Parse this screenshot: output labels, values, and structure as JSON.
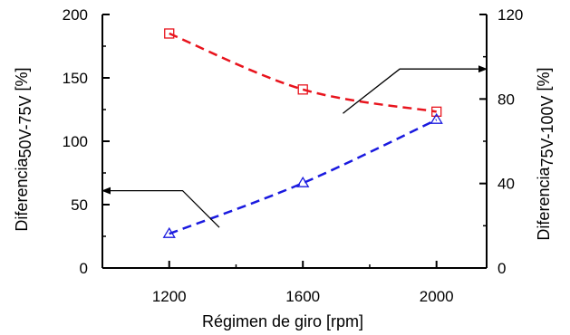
{
  "chart_data": {
    "type": "line",
    "xlabel": "Régimen de giro [rpm]",
    "ylabel_left": {
      "main": "Diferencia",
      "sub": "50V-75V",
      "unit": " [%]"
    },
    "ylabel_right": {
      "main": "Diferencia",
      "sub": "75V-100V",
      "unit": " [%]"
    },
    "x_ticks": [
      1200,
      1600,
      2000
    ],
    "x_range": [
      1000,
      2150
    ],
    "y_left_ticks": [
      0,
      50,
      100,
      150,
      200
    ],
    "y_left_range": [
      0,
      200
    ],
    "y_right_ticks": [
      0,
      40,
      80,
      120
    ],
    "y_right_range": [
      0,
      120
    ],
    "grid": false,
    "series": [
      {
        "axis": "right",
        "marker": "square",
        "color": "#e8141d",
        "line_style": "dashed",
        "x": [
          1200,
          1600,
          2000
        ],
        "y": [
          111,
          84.5,
          74
        ]
      },
      {
        "axis": "left",
        "marker": "triangle",
        "color": "#1a1adf",
        "line_style": "dashed",
        "x": [
          1200,
          1600,
          2000
        ],
        "y": [
          27,
          67,
          117
        ]
      }
    ],
    "annotations": [
      {
        "type": "arrow",
        "points_to": "left-axis",
        "from": {
          "x": 1350,
          "y_left": 32
        },
        "via": {
          "x": 1240,
          "y_left": 61
        },
        "tip": {
          "x": 1000,
          "y_left": 61
        }
      },
      {
        "type": "arrow",
        "points_to": "right-axis",
        "from": {
          "x": 1720,
          "y_left": 122
        },
        "via": {
          "x": 1890,
          "y_left": 157
        },
        "tip": {
          "x": 2150,
          "y_left": 157
        }
      }
    ]
  }
}
